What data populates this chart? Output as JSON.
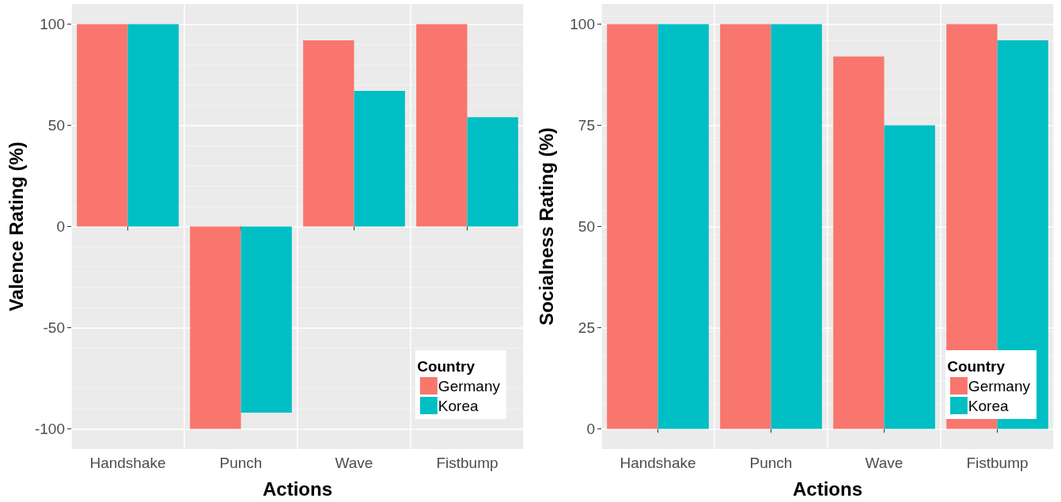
{
  "chart_data": [
    {
      "type": "bar",
      "xlabel": "Actions",
      "ylabel": "Valence Rating (%)",
      "legend_title": "Country",
      "categories": [
        "Handshake",
        "Punch",
        "Wave",
        "Fistbump"
      ],
      "series": [
        {
          "name": "Germany",
          "color": "#f8766d",
          "values": [
            100,
            -100,
            92,
            100
          ]
        },
        {
          "name": "Korea",
          "color": "#00bfc4",
          "values": [
            100,
            -92,
            67,
            54
          ]
        }
      ],
      "ylim": [
        -110,
        110
      ],
      "yticks": [
        -100,
        -50,
        0,
        50,
        100
      ],
      "grid": true,
      "legend": "bottom right"
    },
    {
      "type": "bar",
      "xlabel": "Actions",
      "ylabel": "Socialness Rating (%)",
      "legend_title": "Country",
      "categories": [
        "Handshake",
        "Punch",
        "Wave",
        "Fistbump"
      ],
      "series": [
        {
          "name": "Germany",
          "color": "#f8766d",
          "values": [
            100,
            100,
            92,
            100
          ]
        },
        {
          "name": "Korea",
          "color": "#00bfc4",
          "values": [
            100,
            100,
            75,
            96
          ]
        }
      ],
      "ylim": [
        -5,
        105
      ],
      "yticks": [
        0,
        25,
        50,
        75,
        100
      ],
      "grid": true,
      "legend": "bottom right"
    }
  ]
}
